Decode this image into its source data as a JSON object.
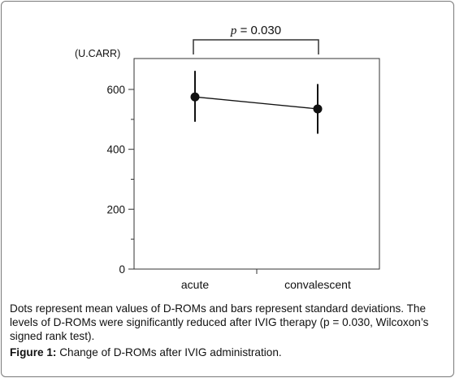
{
  "chart_data": {
    "type": "scatter",
    "unit_label": "(U.CARR)",
    "categories": [
      "acute",
      "convalescent"
    ],
    "series": [
      {
        "means": [
          575,
          535
        ],
        "sd_low": [
          492,
          452
        ],
        "sd_high": [
          662,
          618
        ]
      }
    ],
    "ylim": [
      0,
      700
    ],
    "yticks": [
      0,
      200,
      400,
      600
    ],
    "minor_yticks": [
      100,
      300,
      500
    ],
    "significance": {
      "prefix": "p",
      "text": " = 0.030"
    },
    "colors": {
      "marker": "#111111",
      "line": "#111111",
      "axis": "#333333"
    }
  },
  "caption": {
    "text": "Dots represent mean values of D-ROMs and bars represent standard deviations. The levels of D-ROMs were significantly reduced after IVIG therapy (p = 0.030, Wilcoxon’s signed rank test).",
    "figure_label": "Figure 1:",
    "figure_title": "Change of D-ROMs after IVIG administration."
  }
}
